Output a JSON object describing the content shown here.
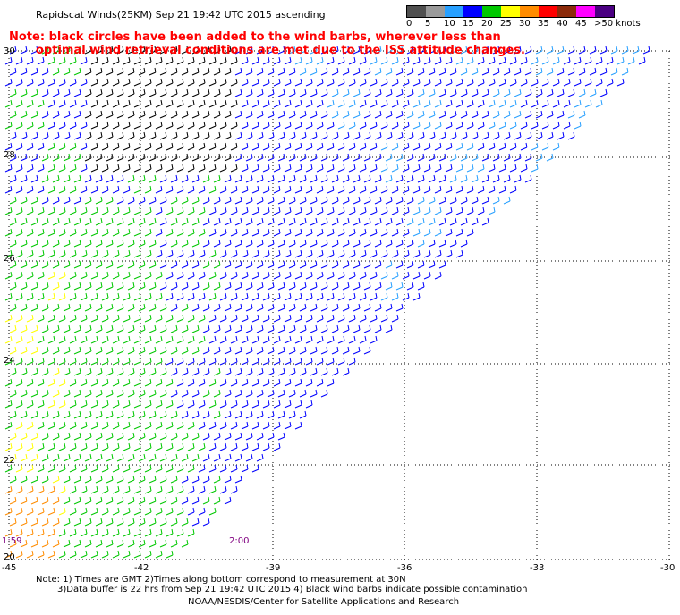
{
  "header": {
    "title": "Rapidscat Winds(25KM) Sep 21 19:42 UTC 2015 ascending",
    "note_line1": "Note: black circles have been added to the wind barbs, wherever less than",
    "note_line2": "optimal wind retrieval conditions are met due to the ISS attitude changes."
  },
  "scale": {
    "labels": [
      "0",
      "5",
      "10",
      "15",
      "20",
      "25",
      "30",
      "35",
      "40",
      "45",
      ">50 knots"
    ],
    "colors": [
      "#505050",
      "#9a9a9a",
      "#28a0ff",
      "#0000ff",
      "#00c800",
      "#ffff00",
      "#ff8c00",
      "#ff0000",
      "#8b2a0a",
      "#ff00ff",
      "#4b0082"
    ]
  },
  "axes": {
    "lat_labels": [
      "30",
      "28",
      "26",
      "24",
      "22",
      "20"
    ],
    "lon_labels": [
      "-45",
      "-42",
      "-39",
      "-36",
      "-33",
      "-30"
    ]
  },
  "times": {
    "left": "1:59",
    "middle": "2:00"
  },
  "footer": {
    "line1": "Note: 1) Times are GMT 2)Times along bottom correspond to measurement at 30N",
    "line2": "3)Data buffer is 22 hrs from Sep 21 19:42 UTC 2015 4) Black wind barbs indicate possible contamination",
    "line3": "NOAA/NESDIS/Center for Satellite Applications and Research"
  },
  "colors": {
    "grid": "#000000",
    "note": "#ff0000",
    "time": "#800080"
  }
}
